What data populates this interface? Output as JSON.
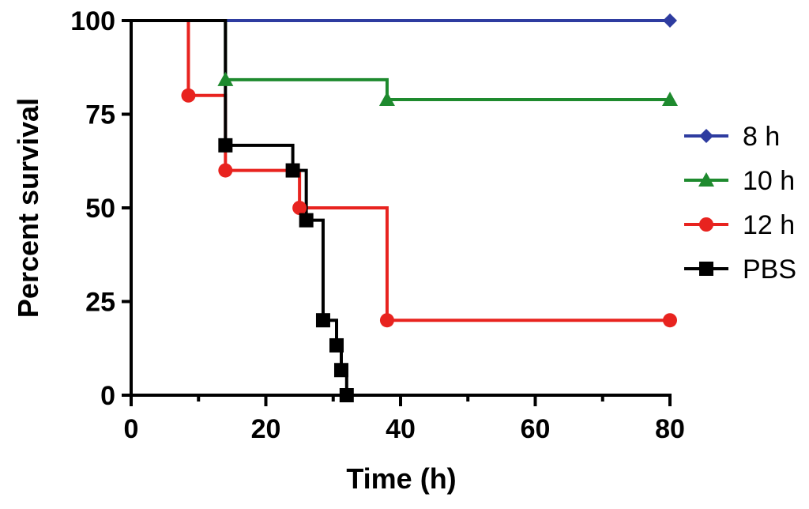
{
  "chart_data": {
    "type": "line",
    "subtype": "kaplan-meier survival",
    "xlabel": "Time (h)",
    "ylabel": "Percent survival",
    "xlim": [
      0,
      80
    ],
    "ylim": [
      0,
      100
    ],
    "x_ticks": [
      0,
      20,
      40,
      60,
      80
    ],
    "x_minor_ticks": [
      10,
      30,
      50,
      70
    ],
    "y_ticks": [
      0,
      25,
      50,
      75,
      100
    ],
    "grid": false,
    "legend_position": "right",
    "series": [
      {
        "name": "8 h",
        "color": "#2E3CA0",
        "marker": "diamond",
        "steps": [
          [
            0,
            100
          ],
          [
            80,
            100
          ]
        ],
        "markers": [
          [
            80,
            100
          ]
        ]
      },
      {
        "name": "10 h",
        "color": "#1E8A2E",
        "marker": "triangle",
        "steps": [
          [
            0,
            100
          ],
          [
            14,
            84.2
          ],
          [
            38,
            78.9
          ],
          [
            80,
            78.9
          ]
        ],
        "markers": [
          [
            14,
            84.2
          ],
          [
            38,
            78.9
          ],
          [
            80,
            78.9
          ]
        ]
      },
      {
        "name": "12 h",
        "color": "#E8231F",
        "marker": "circle",
        "steps": [
          [
            0,
            100
          ],
          [
            8.5,
            80
          ],
          [
            14,
            60
          ],
          [
            25,
            50
          ],
          [
            38,
            20
          ],
          [
            80,
            20
          ]
        ],
        "markers": [
          [
            8.5,
            80
          ],
          [
            14,
            60
          ],
          [
            25,
            50
          ],
          [
            38,
            20
          ],
          [
            80,
            20
          ]
        ]
      },
      {
        "name": "PBS",
        "color": "#000000",
        "marker": "square",
        "steps": [
          [
            0,
            100
          ],
          [
            14,
            66.7
          ],
          [
            24,
            60
          ],
          [
            26,
            46.7
          ],
          [
            28.5,
            20
          ],
          [
            30.5,
            13.3
          ],
          [
            31.2,
            6.7
          ],
          [
            32,
            0
          ]
        ],
        "markers": [
          [
            14,
            66.7
          ],
          [
            24,
            60
          ],
          [
            26,
            46.7
          ],
          [
            28.5,
            20
          ],
          [
            30.5,
            13.3
          ],
          [
            31.2,
            6.7
          ],
          [
            32,
            0
          ]
        ]
      }
    ]
  }
}
